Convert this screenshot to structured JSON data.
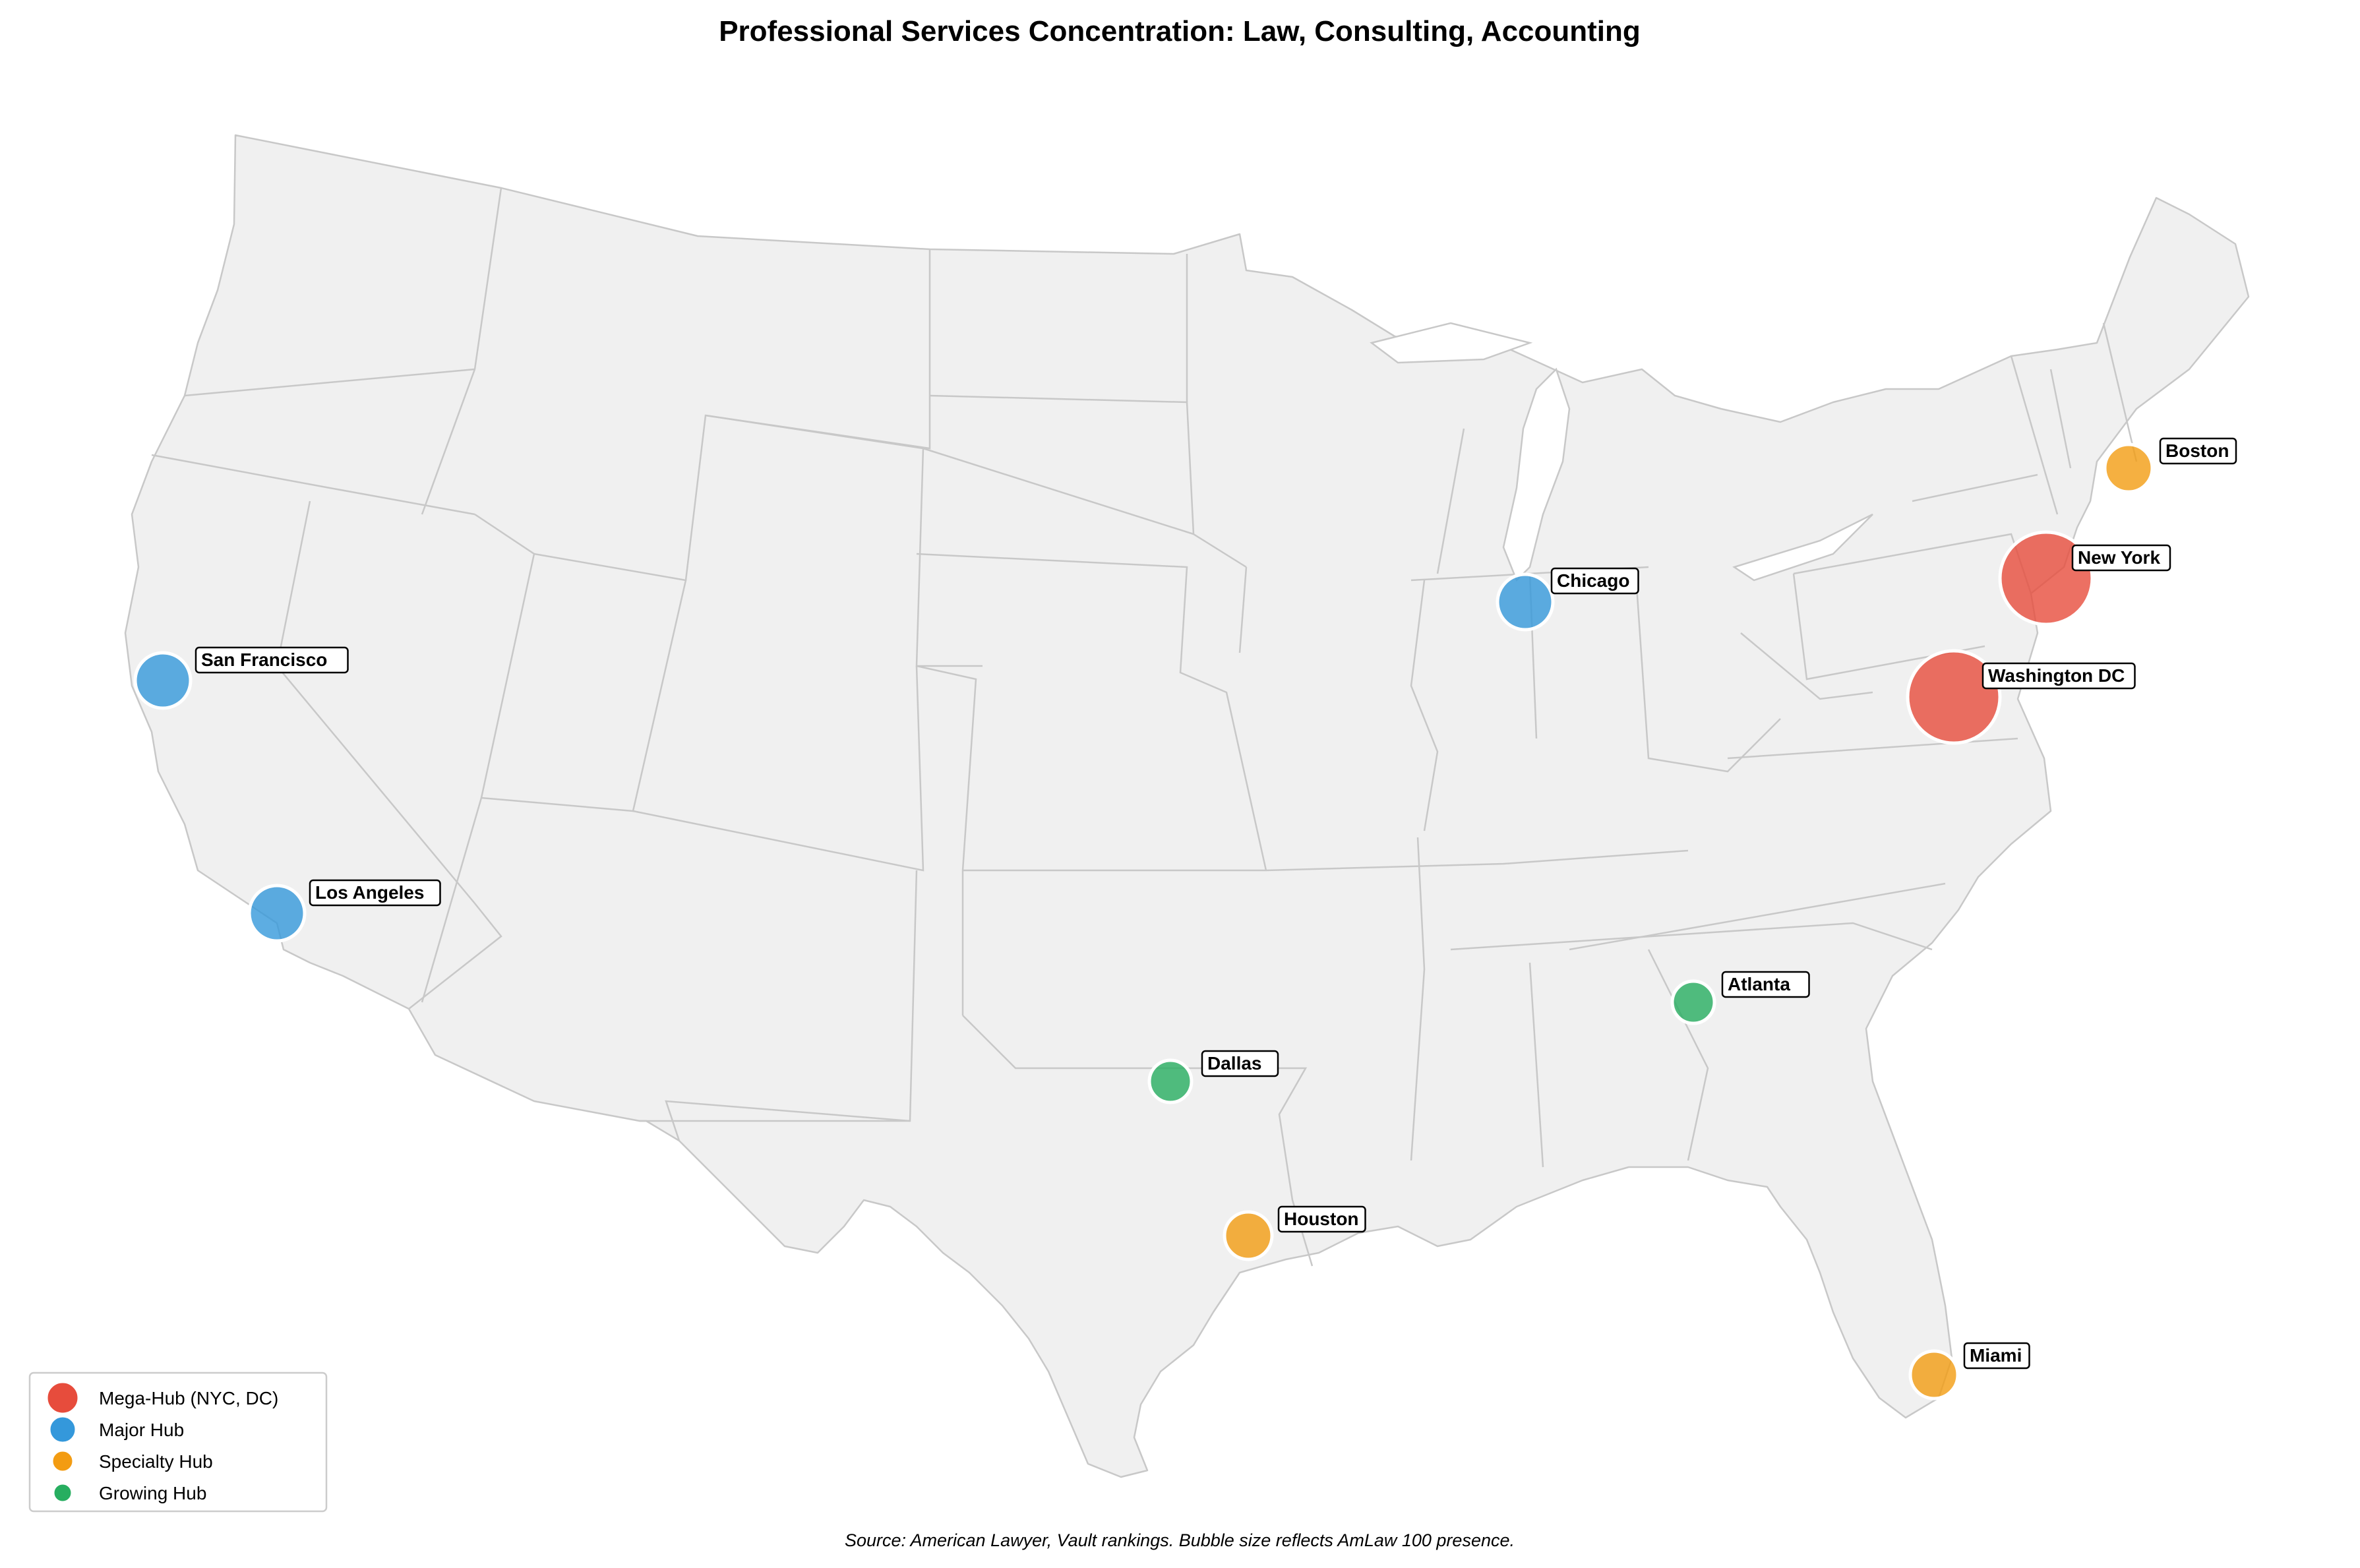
{
  "title": "Professional Services Concentration: Law, Consulting, Accounting",
  "source": "Source: American Lawyer, Vault rankings. Bubble size reflects AmLaw 100 presence.",
  "colors": {
    "mega": "#e74c3c",
    "major": "#3498db",
    "specialty": "#f39c12",
    "growing": "#27ae60",
    "land": "#f0f0f0",
    "border": "#c8c8c8"
  },
  "legend": [
    {
      "label": "Mega-Hub (NYC, DC)",
      "tier": "mega"
    },
    {
      "label": "Major Hub",
      "tier": "major"
    },
    {
      "label": "Specialty Hub",
      "tier": "specialty"
    },
    {
      "label": "Growing Hub",
      "tier": "growing"
    }
  ],
  "cities": [
    {
      "name": "New York",
      "tier": "mega",
      "lon": -74.0,
      "lat": 40.7
    },
    {
      "name": "Washington DC",
      "tier": "mega",
      "lon": -77.0,
      "lat": 38.9
    },
    {
      "name": "Chicago",
      "tier": "major",
      "lon": -87.6,
      "lat": 41.9
    },
    {
      "name": "San Francisco",
      "tier": "major",
      "lon": -122.4,
      "lat": 37.8
    },
    {
      "name": "Los Angeles",
      "tier": "major",
      "lon": -118.2,
      "lat": 34.1
    },
    {
      "name": "Boston",
      "tier": "specialty",
      "lon": -71.1,
      "lat": 42.4
    },
    {
      "name": "Houston",
      "tier": "specialty",
      "lon": -95.4,
      "lat": 29.8
    },
    {
      "name": "Miami",
      "tier": "specialty",
      "lon": -80.2,
      "lat": 25.8
    },
    {
      "name": "Dallas",
      "tier": "growing",
      "lon": -96.8,
      "lat": 32.8
    },
    {
      "name": "Atlanta",
      "tier": "growing",
      "lon": -84.4,
      "lat": 33.7
    }
  ]
}
